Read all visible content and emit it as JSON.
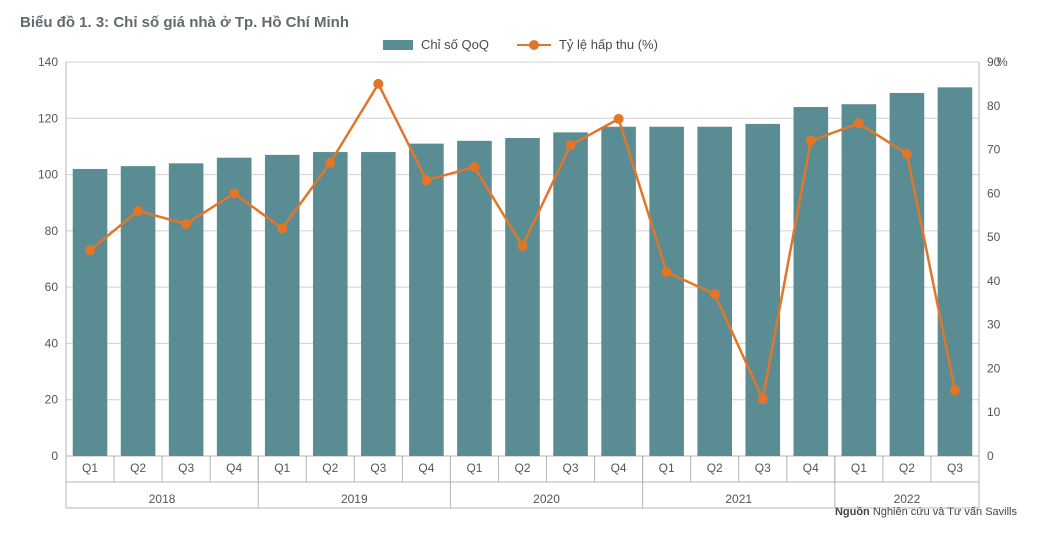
{
  "title": "Biểu đồ 1. 3: Chỉ số giá nhà ở Tp. Hồ Chí Minh",
  "legend": {
    "bar_label": "Chỉ số QoQ",
    "line_label": "Tỷ lệ hấp thu (%)"
  },
  "right_axis_unit": "%",
  "source_label": "Nguồn",
  "source_text": "Nghiên cứu và Tư vấn Savills",
  "chart": {
    "type": "bar+line",
    "background_color": "#ffffff",
    "bar_color": "#5a8d93",
    "line_color": "#e1762a",
    "grid_color": "#d0d0d0",
    "axis_color": "#b5b5b5",
    "tick_fontsize": 12,
    "title_fontsize": 15,
    "title_color": "#5f6b6f",
    "bar_width_ratio": 0.72,
    "marker_radius": 5,
    "line_width": 2.5,
    "left_axis": {
      "min": 0,
      "max": 140,
      "step": 20
    },
    "right_axis": {
      "min": 0,
      "max": 90,
      "step": 10
    },
    "years": [
      {
        "year": "2018",
        "quarters": [
          "Q1",
          "Q2",
          "Q3",
          "Q4"
        ]
      },
      {
        "year": "2019",
        "quarters": [
          "Q1",
          "Q2",
          "Q3",
          "Q4"
        ]
      },
      {
        "year": "2020",
        "quarters": [
          "Q1",
          "Q2",
          "Q3",
          "Q4"
        ]
      },
      {
        "year": "2021",
        "quarters": [
          "Q1",
          "Q2",
          "Q3",
          "Q4"
        ]
      },
      {
        "year": "2022",
        "quarters": [
          "Q1",
          "Q2",
          "Q3"
        ]
      }
    ],
    "bar_values": [
      102,
      103,
      104,
      106,
      107,
      108,
      108,
      111,
      112,
      113,
      115,
      117,
      117,
      117,
      118,
      124,
      125,
      129,
      131
    ],
    "line_values": [
      47,
      56,
      53,
      60,
      52,
      67,
      85,
      63,
      66,
      48,
      71,
      77,
      42,
      37,
      13,
      72,
      76,
      69,
      15
    ]
  }
}
